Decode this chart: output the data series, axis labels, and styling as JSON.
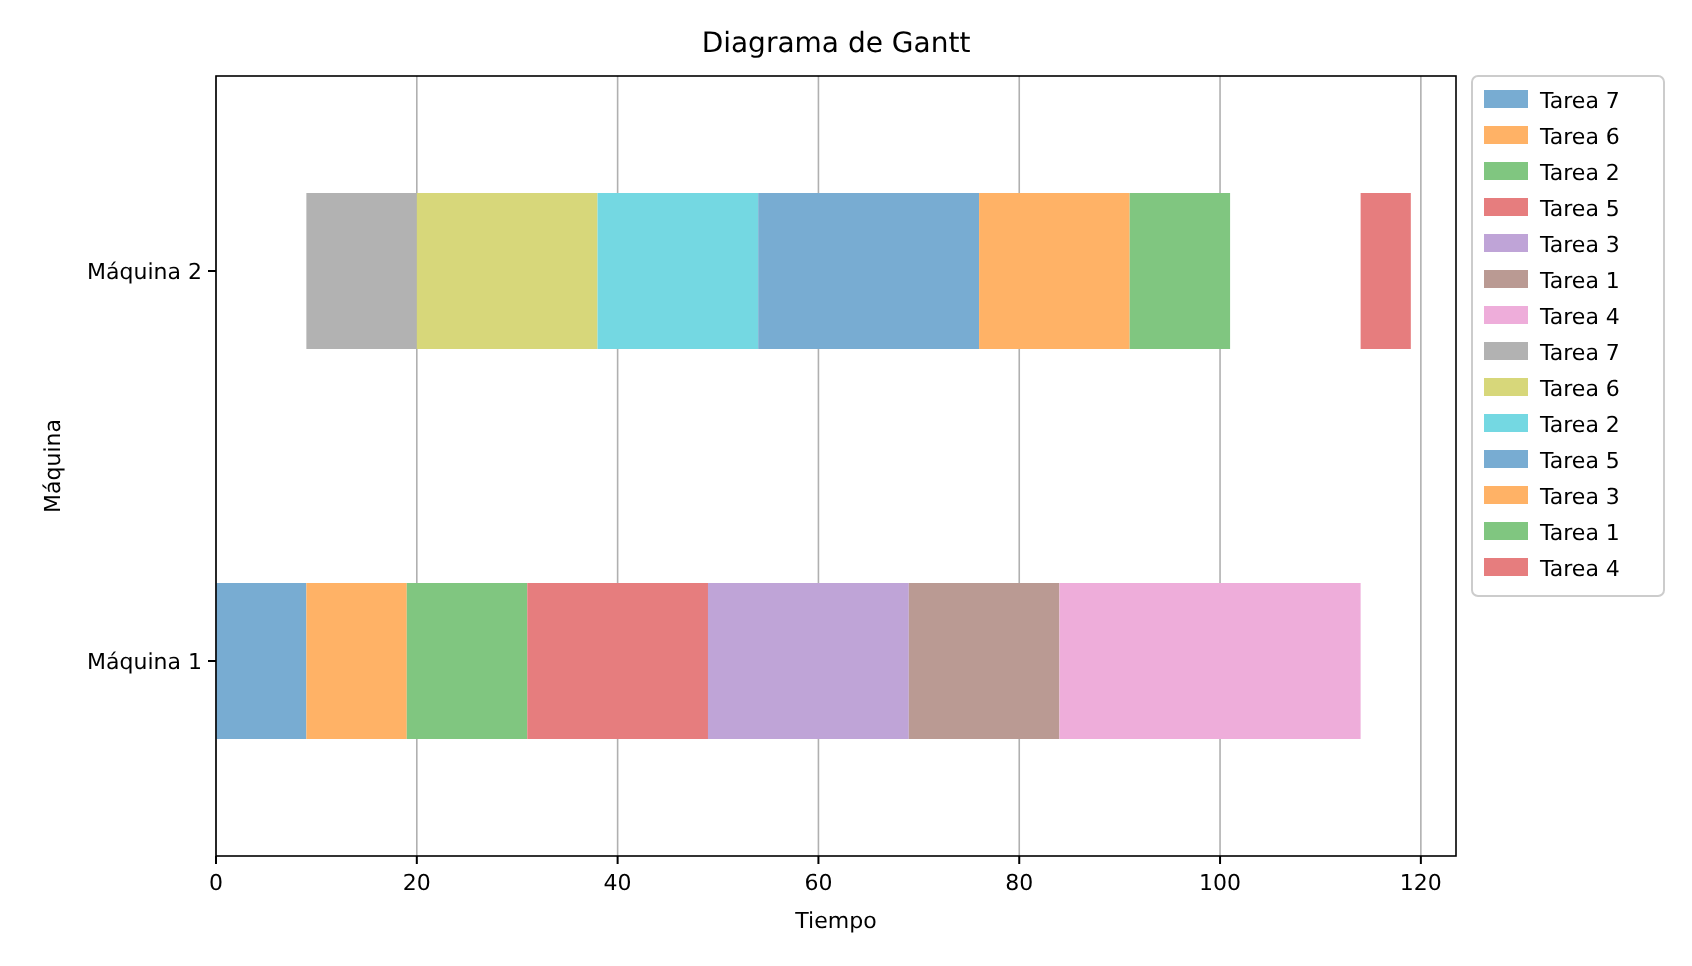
{
  "chart_data": {
    "type": "bar",
    "orientation": "horizontal",
    "title": "Diagrama de Gantt",
    "xlabel": "Tiempo",
    "ylabel": "Máquina",
    "categories": [
      "Máquina 2",
      "Máquina 1"
    ],
    "xlim": [
      0,
      123.5
    ],
    "xticks": [
      0,
      20,
      40,
      60,
      80,
      100,
      120
    ],
    "grid": "x",
    "legend": "right",
    "series": [
      {
        "name": "Tarea 7",
        "color": "#78acd2",
        "values": [
          null,
          9
        ],
        "base": [
          null,
          0
        ]
      },
      {
        "name": "Tarea 6",
        "color": "#ffb266",
        "values": [
          null,
          10
        ],
        "base": [
          null,
          9
        ]
      },
      {
        "name": "Tarea 2",
        "color": "#80c680",
        "values": [
          null,
          12
        ],
        "base": [
          null,
          19
        ]
      },
      {
        "name": "Tarea 5",
        "color": "#e67d7e",
        "values": [
          null,
          18
        ],
        "base": [
          null,
          31
        ]
      },
      {
        "name": "Tarea 3",
        "color": "#bfa4d7",
        "values": [
          null,
          20
        ],
        "base": [
          null,
          49
        ]
      },
      {
        "name": "Tarea 1",
        "color": "#ba9a93",
        "values": [
          null,
          15
        ],
        "base": [
          null,
          69
        ]
      },
      {
        "name": "Tarea 4",
        "color": "#eeadda",
        "values": [
          null,
          30
        ],
        "base": [
          null,
          84
        ]
      },
      {
        "name": "Tarea 7",
        "color": "#b2b2b2",
        "values": [
          11,
          null
        ],
        "base": [
          9,
          null
        ]
      },
      {
        "name": "Tarea 6",
        "color": "#d7d77a",
        "values": [
          18,
          null
        ],
        "base": [
          20,
          null
        ]
      },
      {
        "name": "Tarea 2",
        "color": "#74d8e2",
        "values": [
          16,
          null
        ],
        "base": [
          38,
          null
        ]
      },
      {
        "name": "Tarea 5",
        "color": "#78acd2",
        "values": [
          22,
          null
        ],
        "base": [
          54,
          null
        ]
      },
      {
        "name": "Tarea 3",
        "color": "#ffb266",
        "values": [
          15,
          null
        ],
        "base": [
          76,
          null
        ]
      },
      {
        "name": "Tarea 1",
        "color": "#80c680",
        "values": [
          10,
          null
        ],
        "base": [
          91,
          null
        ]
      },
      {
        "name": "Tarea 4",
        "color": "#e67d7e",
        "values": [
          5,
          null
        ],
        "base": [
          114,
          null
        ]
      }
    ]
  }
}
